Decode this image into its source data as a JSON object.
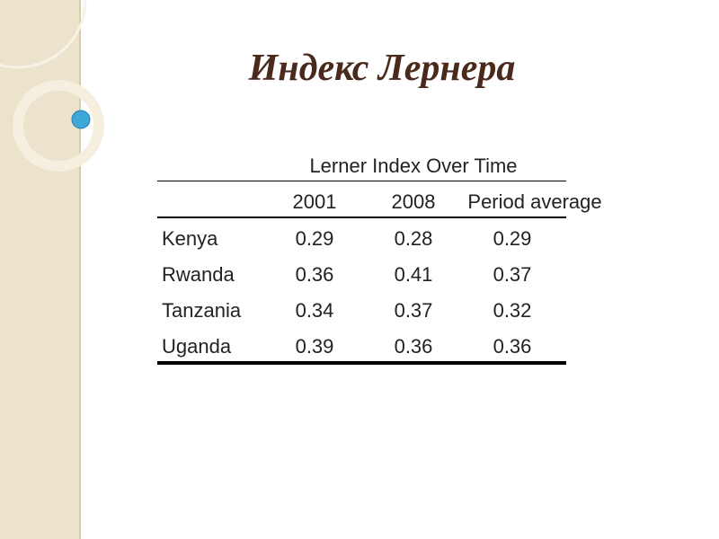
{
  "title": "Индекс Лернера",
  "table": {
    "caption": "Lerner Index Over Time",
    "header": [
      "2001",
      "2008",
      "Period average"
    ],
    "rows": [
      [
        "Kenya",
        "0.29",
        "0.28",
        "0.29"
      ],
      [
        "Rwanda",
        "0.36",
        "0.41",
        "0.37"
      ],
      [
        "Tanzania",
        "0.34",
        "0.37",
        "0.32"
      ],
      [
        "Uganda",
        "0.39",
        "0.36",
        "0.36"
      ]
    ]
  }
}
